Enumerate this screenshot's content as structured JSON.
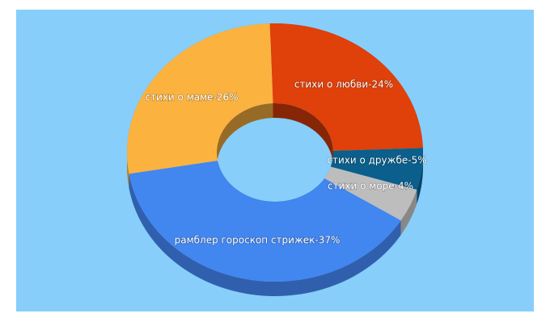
{
  "chart_data": {
    "type": "donut3d",
    "values": [
      24,
      5,
      4,
      37,
      26
    ],
    "value_labels": [
      "стихи о любви-24%",
      "стихи о дружбе-5%",
      "стихи о море-4%",
      "рамблер гороскоп стрижек-37%",
      "стихи о маме-26%"
    ],
    "colors": [
      "#e0400a",
      "#0a5f8c",
      "#bdbdbd",
      "#4286f0",
      "#fbb23f"
    ]
  }
}
